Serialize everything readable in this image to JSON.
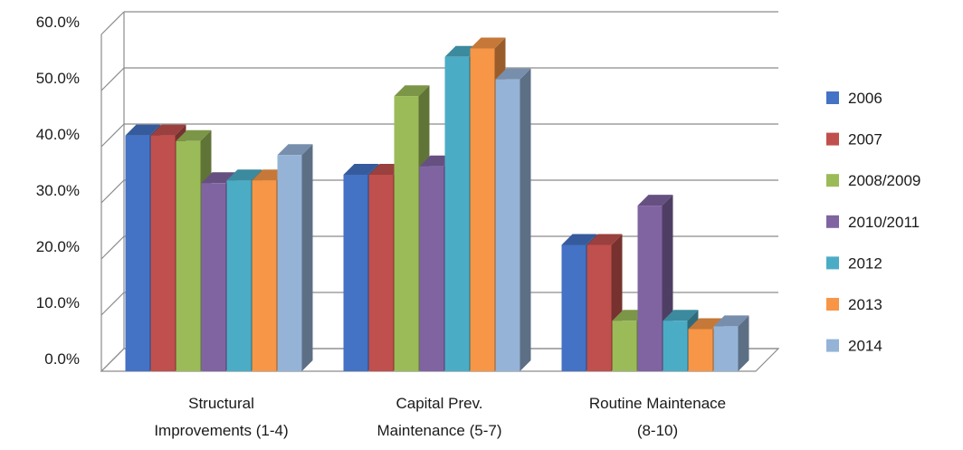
{
  "chart_data": {
    "type": "bar",
    "title": "",
    "xlabel": "",
    "ylabel": "",
    "ylim": [
      0,
      60
    ],
    "y_tick_labels": [
      "0.0%",
      "10.0%",
      "20.0%",
      "30.0%",
      "40.0%",
      "50.0%",
      "60.0%"
    ],
    "grid": true,
    "three_d": true,
    "legend_position": "right",
    "categories": [
      [
        "Structural",
        "Improvements (1-4)"
      ],
      [
        "Capital Prev.",
        "Maintenance (5-7)"
      ],
      [
        "Routine Maintenace",
        "(8-10)"
      ]
    ],
    "series": [
      {
        "name": "2006",
        "color": "#4472C4",
        "values": [
          42.0,
          35.0,
          22.5
        ]
      },
      {
        "name": "2007",
        "color": "#C0504D",
        "values": [
          42.0,
          35.0,
          22.5
        ]
      },
      {
        "name": "2008/2009",
        "color": "#9BBB59",
        "values": [
          41.0,
          49.0,
          9.0
        ]
      },
      {
        "name": "2010/2011",
        "color": "#8064A2",
        "values": [
          33.5,
          36.5,
          29.5
        ]
      },
      {
        "name": "2012",
        "color": "#4BACC6",
        "values": [
          34.0,
          56.0,
          9.0
        ]
      },
      {
        "name": "2013",
        "color": "#F79646",
        "values": [
          34.0,
          57.5,
          7.5
        ]
      },
      {
        "name": "2014",
        "color": "#95B3D7",
        "values": [
          38.5,
          52.0,
          8.0
        ]
      }
    ]
  }
}
